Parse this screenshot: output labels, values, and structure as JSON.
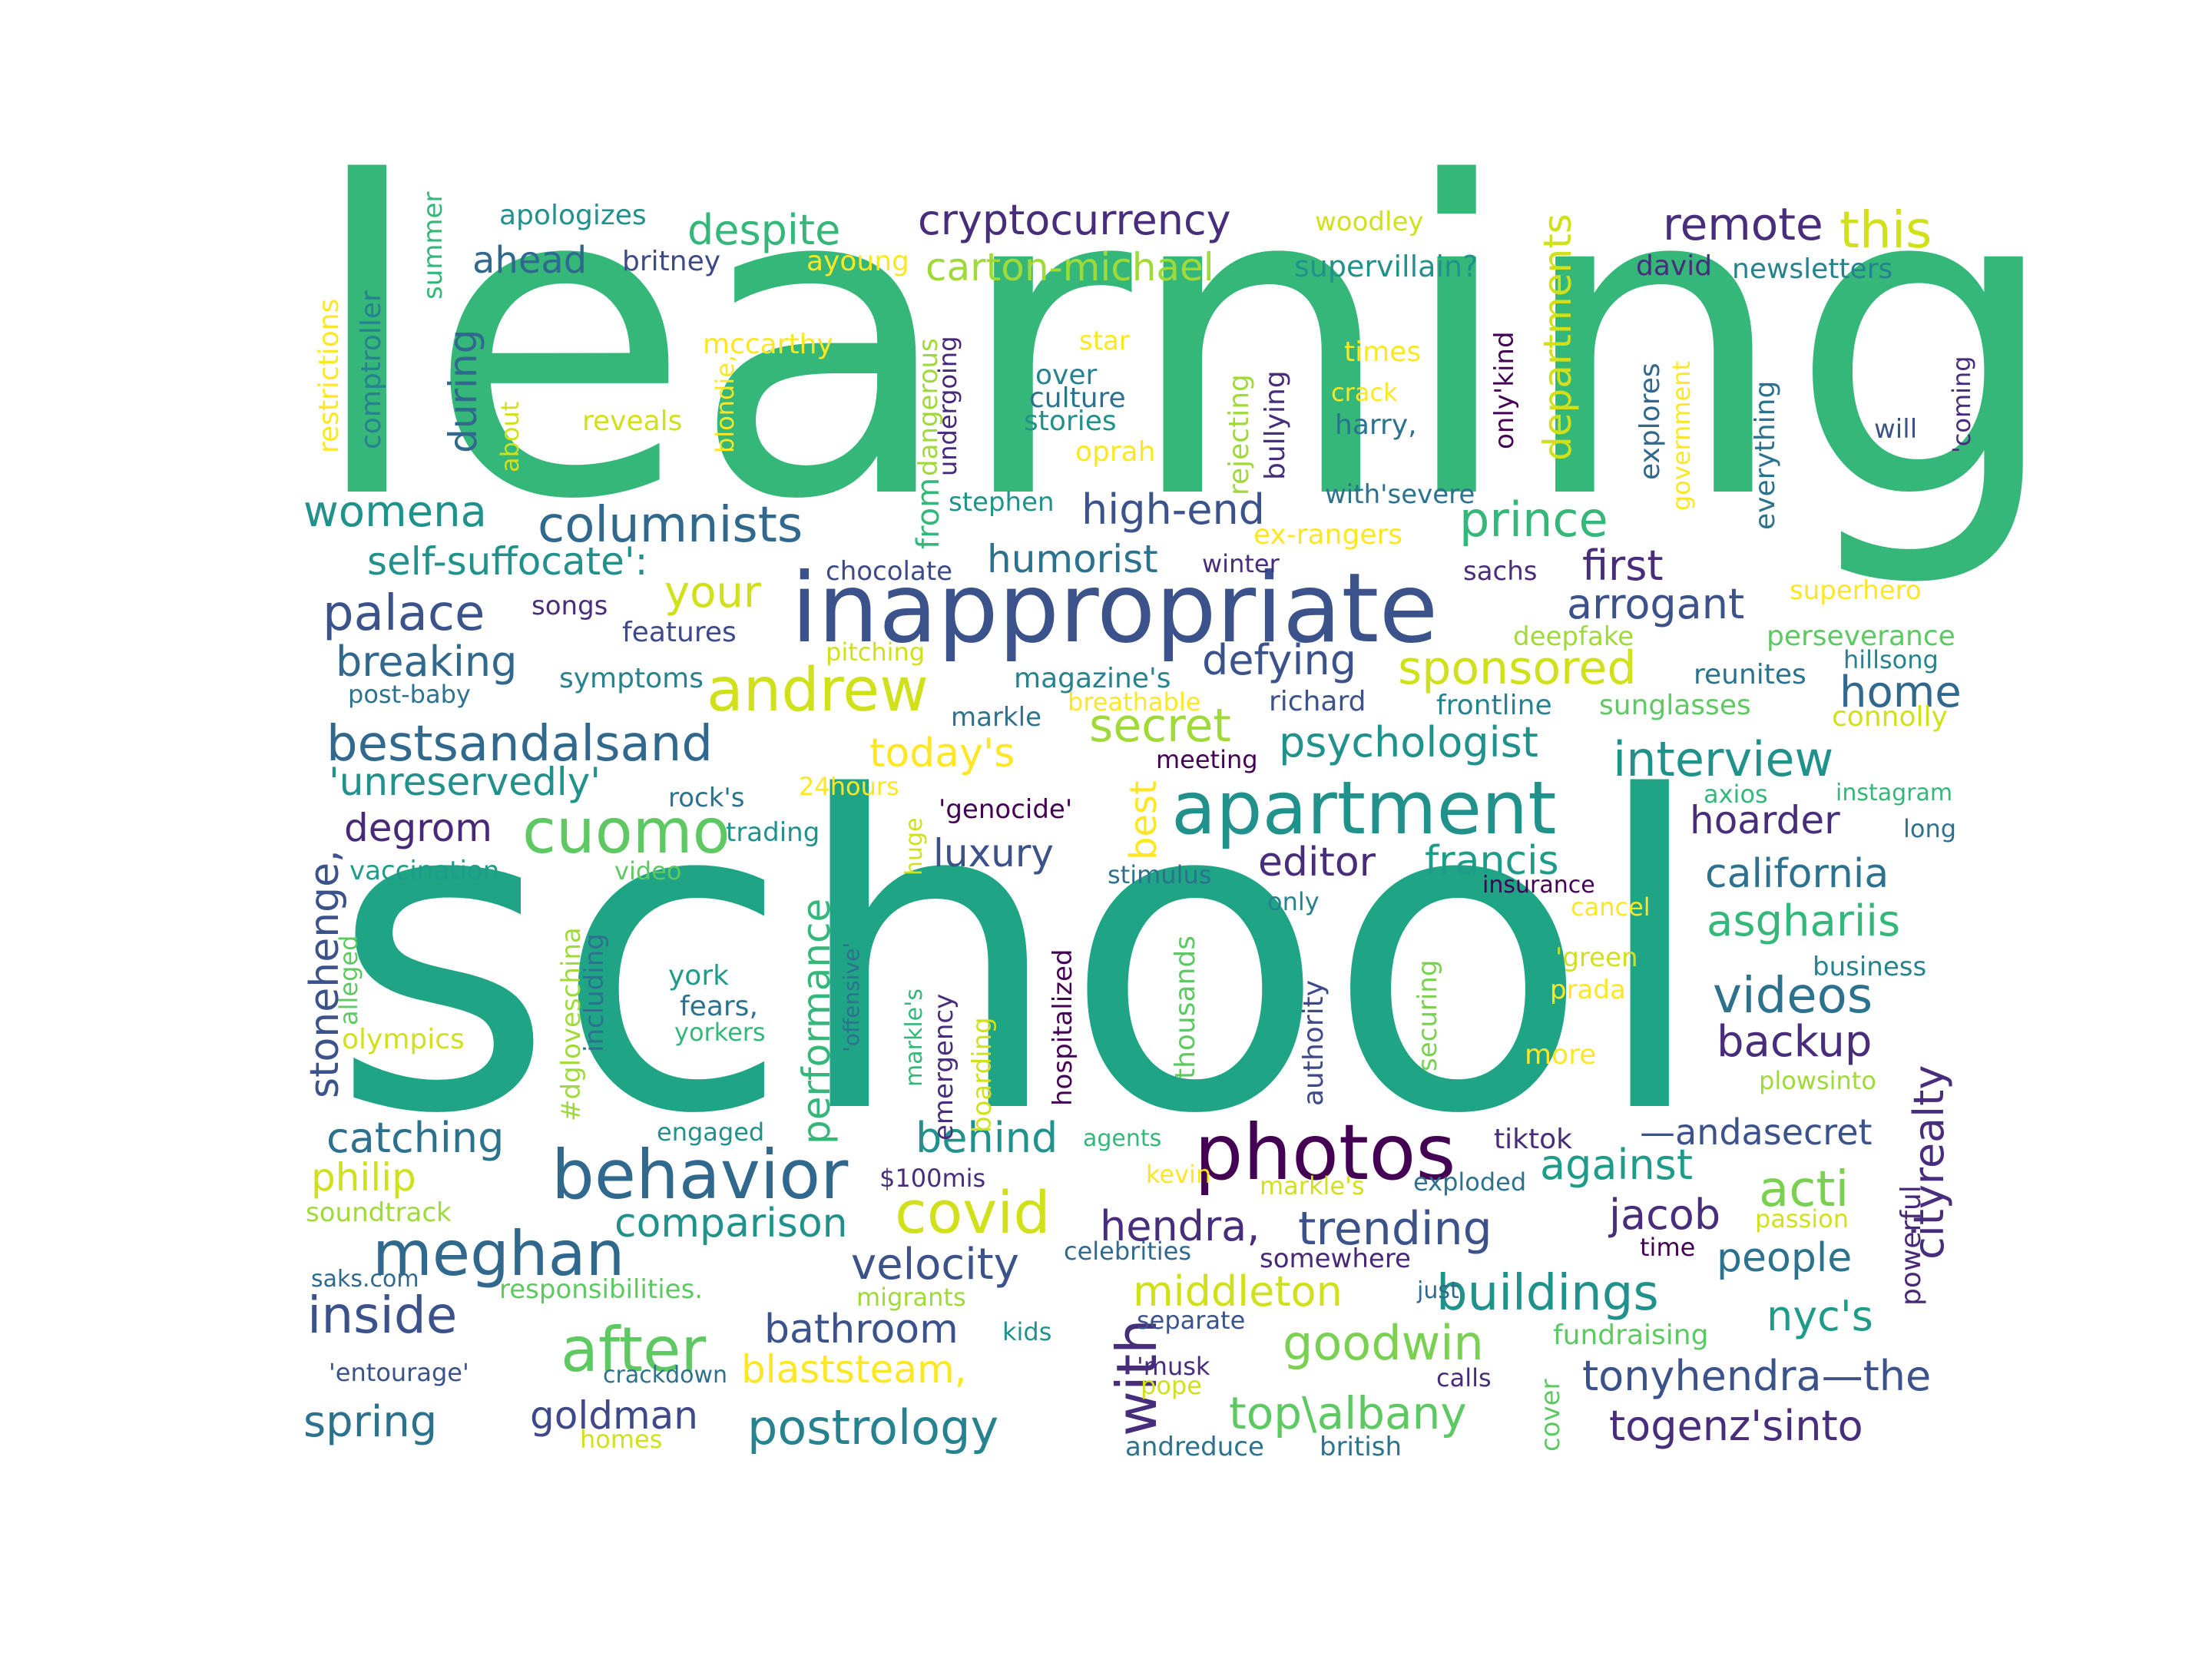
{
  "palette": {
    "c1": "#440154",
    "c2": "#3b528b",
    "c3": "#31688e",
    "c4": "#21918c",
    "c5": "#20a486",
    "c6": "#35b779",
    "c7": "#5ec962",
    "c8": "#a0da39",
    "c9": "#d0e11c",
    "c10": "#fde725",
    "c11": "#472d7b",
    "c12": "#26828e",
    "c13": "#2c728e",
    "c14": "#3e4989",
    "c15": "#482878",
    "c16": "#1e9c89",
    "c17": "#4ac16d",
    "c18": "#7ad151",
    "c19": "#bddf26"
  },
  "words": [
    {
      "t": "learning"
    },
    {
      "t": "school"
    },
    {
      "t": "inappropriate"
    },
    {
      "t": "photos"
    },
    {
      "t": "apartment"
    },
    {
      "t": "behavior"
    },
    {
      "t": "andrew"
    },
    {
      "t": "cuomo"
    },
    {
      "t": "meghan"
    },
    {
      "t": "after"
    },
    {
      "t": "covid"
    },
    {
      "t": "with"
    },
    {
      "t": "columnists"
    },
    {
      "t": "bestsandalsand"
    },
    {
      "t": "interview"
    },
    {
      "t": "cryptocurrency"
    },
    {
      "t": "despite"
    },
    {
      "t": "carton-michael"
    },
    {
      "t": "remote"
    },
    {
      "t": "this"
    },
    {
      "t": "womena"
    },
    {
      "t": "high-end"
    },
    {
      "t": "prince"
    },
    {
      "t": "palace"
    },
    {
      "t": "self-suffocate':"
    },
    {
      "t": "humorist"
    },
    {
      "t": "your"
    },
    {
      "t": "arrogant"
    },
    {
      "t": "first"
    },
    {
      "t": "breaking"
    },
    {
      "t": "defying"
    },
    {
      "t": "sponsored"
    },
    {
      "t": "secret"
    },
    {
      "t": "psychologist"
    },
    {
      "t": "home"
    },
    {
      "t": "today's"
    },
    {
      "t": "'unreservedly'"
    },
    {
      "t": "degrom"
    },
    {
      "t": "luxury"
    },
    {
      "t": "editor"
    },
    {
      "t": "francis"
    },
    {
      "t": "hoarder"
    },
    {
      "t": "california"
    },
    {
      "t": "asghariis"
    },
    {
      "t": "videos"
    },
    {
      "t": "backup"
    },
    {
      "t": "catching"
    },
    {
      "t": "behind"
    },
    {
      "t": "comparison"
    },
    {
      "t": "philip"
    },
    {
      "t": "hendra,"
    },
    {
      "t": "trending"
    },
    {
      "t": "against"
    },
    {
      "t": "acti"
    },
    {
      "t": "jacob"
    },
    {
      "t": "velocity"
    },
    {
      "t": "people"
    },
    {
      "t": "middleton"
    },
    {
      "t": "buildings"
    },
    {
      "t": "inside"
    },
    {
      "t": "bathroom"
    },
    {
      "t": "goodwin"
    },
    {
      "t": "nyc's"
    },
    {
      "t": "blaststeam,"
    },
    {
      "t": "tonyhendra—the"
    },
    {
      "t": "spring"
    },
    {
      "t": "goldman"
    },
    {
      "t": "postrology"
    },
    {
      "t": "top\\albany"
    },
    {
      "t": "togenz'sinto"
    },
    {
      "t": "—andasecret"
    },
    {
      "t": "cityrealty"
    },
    {
      "t": "stonehenge,"
    },
    {
      "t": "performance"
    },
    {
      "t": "best"
    },
    {
      "t": "departments"
    },
    {
      "t": "during"
    },
    {
      "t": "ahead"
    },
    {
      "t": "apologizes"
    },
    {
      "t": "britney"
    },
    {
      "t": "ayoung"
    },
    {
      "t": "woodley"
    },
    {
      "t": "supervillain?"
    },
    {
      "t": "david"
    },
    {
      "t": "newsletters"
    },
    {
      "t": "summer"
    },
    {
      "t": "restrictions"
    },
    {
      "t": "comptroller"
    },
    {
      "t": "mccarthy"
    },
    {
      "t": "reveals"
    },
    {
      "t": "about"
    },
    {
      "t": "star"
    },
    {
      "t": "over"
    },
    {
      "t": "culture"
    },
    {
      "t": "stories"
    },
    {
      "t": "oprah"
    },
    {
      "t": "times"
    },
    {
      "t": "crack"
    },
    {
      "t": "harry,"
    },
    {
      "t": "will"
    },
    {
      "t": "stephen"
    },
    {
      "t": "with'severe"
    },
    {
      "t": "ex-rangers"
    },
    {
      "t": "chocolate"
    },
    {
      "t": "winter"
    },
    {
      "t": "sachs"
    },
    {
      "t": "superhero"
    },
    {
      "t": "songs"
    },
    {
      "t": "features"
    },
    {
      "t": "deepfake"
    },
    {
      "t": "perseverance"
    },
    {
      "t": "pitching"
    },
    {
      "t": "hillsong"
    },
    {
      "t": "symptoms"
    },
    {
      "t": "magazine's"
    },
    {
      "t": "reunites"
    },
    {
      "t": "post-baby"
    },
    {
      "t": "breathable"
    },
    {
      "t": "richard"
    },
    {
      "t": "frontline"
    },
    {
      "t": "sunglasses"
    },
    {
      "t": "markle"
    },
    {
      "t": "connolly"
    },
    {
      "t": "meeting"
    },
    {
      "t": "rock's"
    },
    {
      "t": "24hours"
    },
    {
      "t": "'genocide'"
    },
    {
      "t": "axios"
    },
    {
      "t": "instagram"
    },
    {
      "t": "trading"
    },
    {
      "t": "long"
    },
    {
      "t": "vaccination"
    },
    {
      "t": "video"
    },
    {
      "t": "stimulus"
    },
    {
      "t": "insurance"
    },
    {
      "t": "only"
    },
    {
      "t": "cancel"
    },
    {
      "t": "'green"
    },
    {
      "t": "business"
    },
    {
      "t": "prada"
    },
    {
      "t": "york"
    },
    {
      "t": "fears,"
    },
    {
      "t": "yorkers"
    },
    {
      "t": "olympics"
    },
    {
      "t": "more"
    },
    {
      "t": "plowsinto"
    },
    {
      "t": "engaged"
    },
    {
      "t": "agents"
    },
    {
      "t": "tiktok"
    },
    {
      "t": "$100mis"
    },
    {
      "t": "kevin"
    },
    {
      "t": "markle's"
    },
    {
      "t": "exploded"
    },
    {
      "t": "soundtrack"
    },
    {
      "t": "passion"
    },
    {
      "t": "celebrities"
    },
    {
      "t": "somewhere"
    },
    {
      "t": "time"
    },
    {
      "t": "saks.com"
    },
    {
      "t": "responsibilities."
    },
    {
      "t": "migrants"
    },
    {
      "t": "just"
    },
    {
      "t": "kids"
    },
    {
      "t": "separate"
    },
    {
      "t": "fundraising"
    },
    {
      "t": "'entourage'"
    },
    {
      "t": "crackdown"
    },
    {
      "t": "'musk"
    },
    {
      "t": "pope"
    },
    {
      "t": "calls"
    },
    {
      "t": "homes"
    },
    {
      "t": "andreduce"
    },
    {
      "t": "british"
    },
    {
      "t": "cover"
    },
    {
      "t": "powerful"
    },
    {
      "t": "securing"
    },
    {
      "t": "authority"
    },
    {
      "t": "thousands"
    },
    {
      "t": "hospitalized"
    },
    {
      "t": "emergency"
    },
    {
      "t": "boarding"
    },
    {
      "t": "markle's"
    },
    {
      "t": "'offensive'"
    },
    {
      "t": "huge"
    },
    {
      "t": "#dgloveschina"
    },
    {
      "t": "including"
    },
    {
      "t": "alleged"
    },
    {
      "t": "from"
    },
    {
      "t": "dangerous"
    },
    {
      "t": "undergoing"
    },
    {
      "t": "blondie,"
    },
    {
      "t": "rejecting"
    },
    {
      "t": "bullying"
    },
    {
      "t": "only'kind"
    },
    {
      "t": "explores"
    },
    {
      "t": "government"
    },
    {
      "t": "everything"
    },
    {
      "t": "'coming"
    }
  ]
}
